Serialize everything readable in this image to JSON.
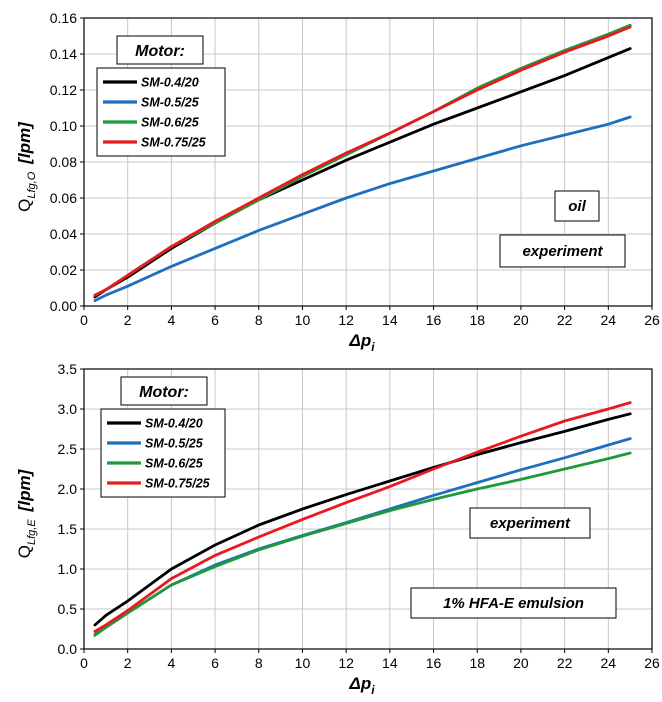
{
  "chart_data": [
    {
      "type": "line",
      "xlabel": {
        "main": "Δp",
        "sub": "i"
      },
      "ylabel": {
        "main": "Q",
        "sub": "Lfg,O",
        "unit": "[lpm]"
      },
      "xlim": [
        0,
        26
      ],
      "ylim": [
        0,
        0.16
      ],
      "xticks": [
        "0",
        "2",
        "4",
        "6",
        "8",
        "10",
        "12",
        "14",
        "16",
        "18",
        "20",
        "22",
        "24",
        "26"
      ],
      "yticks": [
        "0.00",
        "0.02",
        "0.04",
        "0.06",
        "0.08",
        "0.10",
        "0.12",
        "0.14",
        "0.16"
      ],
      "grid": true,
      "legend": {
        "title": "Motor:",
        "placement": "top-left"
      },
      "annotations": [
        "oil",
        "experiment"
      ],
      "colors": {
        "SM-0.4/20": "#000000",
        "SM-0.5/25": "#1f6fbf",
        "SM-0.6/25": "#1f9a3a",
        "SM-0.75/25": "#e8191f"
      },
      "x": [
        0.5,
        1,
        2,
        4,
        6,
        8,
        10,
        12,
        14,
        16,
        18,
        20,
        22,
        24,
        25
      ],
      "series": [
        {
          "name": "SM-0.4/20",
          "values": [
            0.005,
            0.009,
            0.016,
            0.032,
            0.046,
            0.059,
            0.07,
            0.081,
            0.091,
            0.101,
            0.11,
            0.119,
            0.128,
            0.138,
            0.143
          ]
        },
        {
          "name": "SM-0.5/25",
          "values": [
            0.003,
            0.006,
            0.011,
            0.022,
            0.032,
            0.042,
            0.051,
            0.06,
            0.068,
            0.075,
            0.082,
            0.089,
            0.095,
            0.101,
            0.105
          ]
        },
        {
          "name": "SM-0.6/25",
          "values": [
            0.006,
            0.009,
            0.017,
            0.033,
            0.046,
            0.059,
            0.072,
            0.084,
            0.096,
            0.108,
            0.121,
            0.132,
            0.142,
            0.151,
            0.156
          ]
        },
        {
          "name": "SM-0.75/25",
          "values": [
            0.006,
            0.009,
            0.017,
            0.033,
            0.047,
            0.06,
            0.073,
            0.085,
            0.096,
            0.108,
            0.12,
            0.131,
            0.141,
            0.15,
            0.155
          ]
        }
      ]
    },
    {
      "type": "line",
      "xlabel": {
        "main": "Δp",
        "sub": "i"
      },
      "ylabel": {
        "main": "Q",
        "sub": "Lfg,E",
        "unit": "[lpm]"
      },
      "xlim": [
        0,
        26
      ],
      "ylim": [
        0,
        3.5
      ],
      "xticks": [
        "0",
        "2",
        "4",
        "6",
        "8",
        "10",
        "12",
        "14",
        "16",
        "18",
        "20",
        "22",
        "24",
        "26"
      ],
      "yticks": [
        "0.0",
        "0.5",
        "1.0",
        "1.5",
        "2.0",
        "2.5",
        "3.0",
        "3.5"
      ],
      "grid": true,
      "legend": {
        "title": "Motor:",
        "placement": "top-left"
      },
      "annotations": [
        "experiment",
        "1% HFA-E emulsion"
      ],
      "colors": {
        "SM-0.4/20": "#000000",
        "SM-0.5/25": "#1f6fbf",
        "SM-0.6/25": "#1f9a3a",
        "SM-0.75/25": "#e8191f"
      },
      "x": [
        0.5,
        1,
        2,
        4,
        6,
        8,
        10,
        12,
        14,
        16,
        18,
        20,
        22,
        24,
        25
      ],
      "series": [
        {
          "name": "SM-0.4/20",
          "values": [
            0.3,
            0.42,
            0.6,
            1.0,
            1.3,
            1.55,
            1.75,
            1.93,
            2.1,
            2.27,
            2.43,
            2.58,
            2.72,
            2.87,
            2.94
          ]
        },
        {
          "name": "SM-0.5/25",
          "values": [
            0.18,
            0.27,
            0.45,
            0.8,
            1.05,
            1.25,
            1.42,
            1.58,
            1.75,
            1.92,
            2.08,
            2.24,
            2.39,
            2.55,
            2.63
          ]
        },
        {
          "name": "SM-0.6/25",
          "values": [
            0.17,
            0.27,
            0.45,
            0.8,
            1.03,
            1.24,
            1.41,
            1.57,
            1.73,
            1.87,
            2.0,
            2.12,
            2.25,
            2.38,
            2.45
          ]
        },
        {
          "name": "SM-0.75/25",
          "values": [
            0.22,
            0.3,
            0.48,
            0.88,
            1.17,
            1.4,
            1.62,
            1.83,
            2.03,
            2.25,
            2.46,
            2.66,
            2.85,
            3.0,
            3.08
          ]
        }
      ]
    }
  ]
}
